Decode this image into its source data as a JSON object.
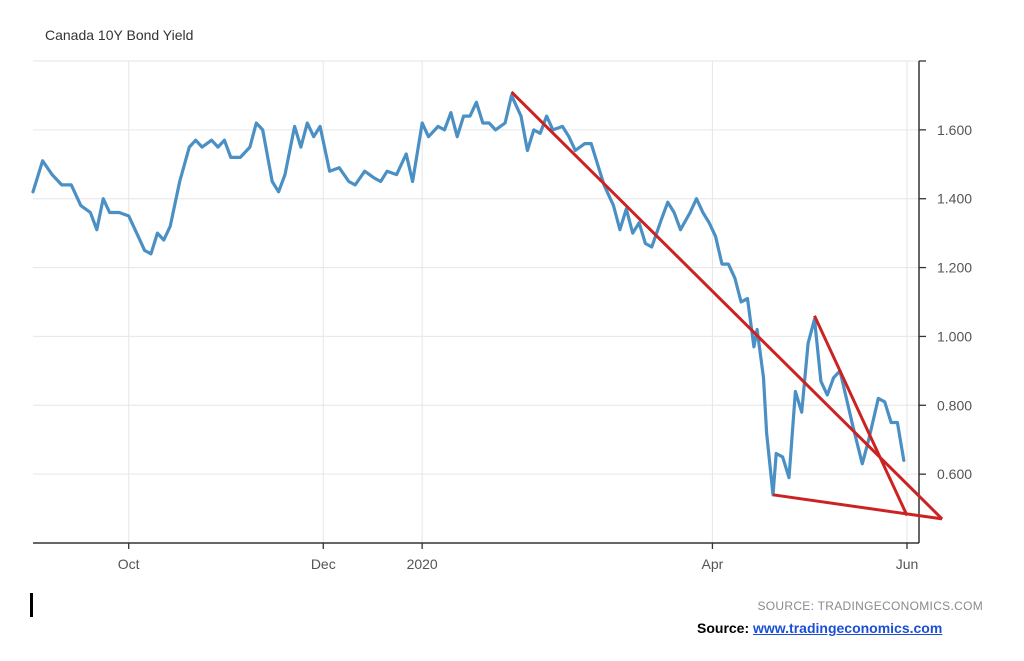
{
  "chart_data": {
    "type": "line",
    "title": "Canada 10Y Bond Yield",
    "source_note": "SOURCE: TRADINGECONOMICS.COM",
    "x_tick_labels": [
      "Oct",
      "Dec",
      "2020",
      "Apr",
      "Jun"
    ],
    "x_tick_dates": [
      "2019-10-01",
      "2019-12-01",
      "2020-01-01",
      "2020-04-01",
      "2020-06-01"
    ],
    "xlim": [
      "2019-09-01",
      "2020-06-01"
    ],
    "ylim": [
      0.4,
      1.8
    ],
    "y_ticks": [
      0.6,
      0.8,
      1.0,
      1.2,
      1.4,
      1.6
    ],
    "y_tick_labels": [
      "0.600",
      "0.800",
      "1.000",
      "1.200",
      "1.400",
      "1.600"
    ],
    "grid": true,
    "y_axis_side": "right",
    "series": [
      {
        "color": "#4a90c4",
        "points": [
          [
            "2019-09-01",
            1.42
          ],
          [
            "2019-09-04",
            1.51
          ],
          [
            "2019-09-07",
            1.47
          ],
          [
            "2019-09-10",
            1.44
          ],
          [
            "2019-09-13",
            1.44
          ],
          [
            "2019-09-16",
            1.38
          ],
          [
            "2019-09-19",
            1.36
          ],
          [
            "2019-09-21",
            1.31
          ],
          [
            "2019-09-23",
            1.4
          ],
          [
            "2019-09-25",
            1.36
          ],
          [
            "2019-09-28",
            1.36
          ],
          [
            "2019-10-01",
            1.35
          ],
          [
            "2019-10-04",
            1.29
          ],
          [
            "2019-10-06",
            1.25
          ],
          [
            "2019-10-08",
            1.24
          ],
          [
            "2019-10-10",
            1.3
          ],
          [
            "2019-10-12",
            1.28
          ],
          [
            "2019-10-14",
            1.32
          ],
          [
            "2019-10-17",
            1.45
          ],
          [
            "2019-10-20",
            1.55
          ],
          [
            "2019-10-22",
            1.57
          ],
          [
            "2019-10-24",
            1.55
          ],
          [
            "2019-10-27",
            1.57
          ],
          [
            "2019-10-29",
            1.55
          ],
          [
            "2019-10-31",
            1.57
          ],
          [
            "2019-11-02",
            1.52
          ],
          [
            "2019-11-05",
            1.52
          ],
          [
            "2019-11-08",
            1.55
          ],
          [
            "2019-11-10",
            1.62
          ],
          [
            "2019-11-12",
            1.6
          ],
          [
            "2019-11-15",
            1.45
          ],
          [
            "2019-11-17",
            1.42
          ],
          [
            "2019-11-19",
            1.47
          ],
          [
            "2019-11-22",
            1.61
          ],
          [
            "2019-11-24",
            1.55
          ],
          [
            "2019-11-26",
            1.62
          ],
          [
            "2019-11-28",
            1.58
          ],
          [
            "2019-11-30",
            1.61
          ],
          [
            "2019-12-03",
            1.48
          ],
          [
            "2019-12-06",
            1.49
          ],
          [
            "2019-12-09",
            1.45
          ],
          [
            "2019-12-11",
            1.44
          ],
          [
            "2019-12-14",
            1.48
          ],
          [
            "2019-12-17",
            1.46
          ],
          [
            "2019-12-19",
            1.45
          ],
          [
            "2019-12-21",
            1.48
          ],
          [
            "2019-12-24",
            1.47
          ],
          [
            "2019-12-27",
            1.53
          ],
          [
            "2019-12-29",
            1.45
          ],
          [
            "2020-01-01",
            1.62
          ],
          [
            "2020-01-03",
            1.58
          ],
          [
            "2020-01-06",
            1.61
          ],
          [
            "2020-01-08",
            1.6
          ],
          [
            "2020-01-10",
            1.65
          ],
          [
            "2020-01-12",
            1.58
          ],
          [
            "2020-01-14",
            1.64
          ],
          [
            "2020-01-16",
            1.64
          ],
          [
            "2020-01-18",
            1.68
          ],
          [
            "2020-01-20",
            1.62
          ],
          [
            "2020-01-22",
            1.62
          ],
          [
            "2020-01-24",
            1.6
          ],
          [
            "2020-01-27",
            1.62
          ],
          [
            "2020-01-29",
            1.7
          ],
          [
            "2020-02-01",
            1.64
          ],
          [
            "2020-02-03",
            1.54
          ],
          [
            "2020-02-05",
            1.6
          ],
          [
            "2020-02-07",
            1.59
          ],
          [
            "2020-02-09",
            1.64
          ],
          [
            "2020-02-11",
            1.6
          ],
          [
            "2020-02-14",
            1.61
          ],
          [
            "2020-02-16",
            1.58
          ],
          [
            "2020-02-18",
            1.54
          ],
          [
            "2020-02-21",
            1.56
          ],
          [
            "2020-02-23",
            1.56
          ],
          [
            "2020-02-25",
            1.5
          ],
          [
            "2020-02-27",
            1.44
          ],
          [
            "2020-03-01",
            1.38
          ],
          [
            "2020-03-03",
            1.31
          ],
          [
            "2020-03-05",
            1.37
          ],
          [
            "2020-03-07",
            1.3
          ],
          [
            "2020-03-09",
            1.33
          ],
          [
            "2020-03-11",
            1.27
          ],
          [
            "2020-03-13",
            1.26
          ],
          [
            "2020-03-16",
            1.34
          ],
          [
            "2020-03-18",
            1.39
          ],
          [
            "2020-03-20",
            1.36
          ],
          [
            "2020-03-22",
            1.31
          ],
          [
            "2020-03-25",
            1.36
          ],
          [
            "2020-03-27",
            1.4
          ],
          [
            "2020-03-29",
            1.36
          ],
          [
            "2020-03-31",
            1.33
          ],
          [
            "2020-04-02",
            1.29
          ],
          [
            "2020-04-04",
            1.21
          ],
          [
            "2020-04-06",
            1.21
          ],
          [
            "2020-04-08",
            1.17
          ],
          [
            "2020-04-10",
            1.1
          ],
          [
            "2020-04-12",
            1.11
          ],
          [
            "2020-04-14",
            0.97
          ],
          [
            "2020-04-15",
            1.02
          ],
          [
            "2020-04-17",
            0.88
          ],
          [
            "2020-04-18",
            0.72
          ],
          [
            "2020-04-20",
            0.54
          ],
          [
            "2020-04-21",
            0.66
          ],
          [
            "2020-04-23",
            0.65
          ],
          [
            "2020-04-25",
            0.59
          ],
          [
            "2020-04-27",
            0.84
          ],
          [
            "2020-04-29",
            0.78
          ],
          [
            "2020-05-01",
            0.98
          ],
          [
            "2020-05-03",
            1.05
          ],
          [
            "2020-05-05",
            0.87
          ],
          [
            "2020-05-07",
            0.83
          ],
          [
            "2020-05-09",
            0.88
          ],
          [
            "2020-05-11",
            0.9
          ],
          [
            "2020-05-13",
            0.82
          ],
          [
            "2020-05-15",
            0.74
          ],
          [
            "2020-05-18",
            0.63
          ],
          [
            "2020-05-20",
            0.7
          ],
          [
            "2020-05-23",
            0.82
          ],
          [
            "2020-05-25",
            0.81
          ],
          [
            "2020-05-27",
            0.75
          ],
          [
            "2020-05-29",
            0.75
          ],
          [
            "2020-05-31",
            0.64
          ]
        ]
      }
    ],
    "trendlines": [
      {
        "color": "#cc2222",
        "from": [
          "2020-01-29",
          1.71
        ],
        "to": [
          "2020-06-12",
          0.47
        ]
      },
      {
        "color": "#cc2222",
        "from": [
          "2020-05-03",
          1.06
        ],
        "to": [
          "2020-06-01",
          0.48
        ]
      },
      {
        "color": "#cc2222",
        "from": [
          "2020-04-20",
          0.54
        ],
        "to": [
          "2020-06-12",
          0.47
        ]
      }
    ]
  },
  "credit": {
    "label": "Source:",
    "link_text": "www.tradingeconomics.com"
  }
}
